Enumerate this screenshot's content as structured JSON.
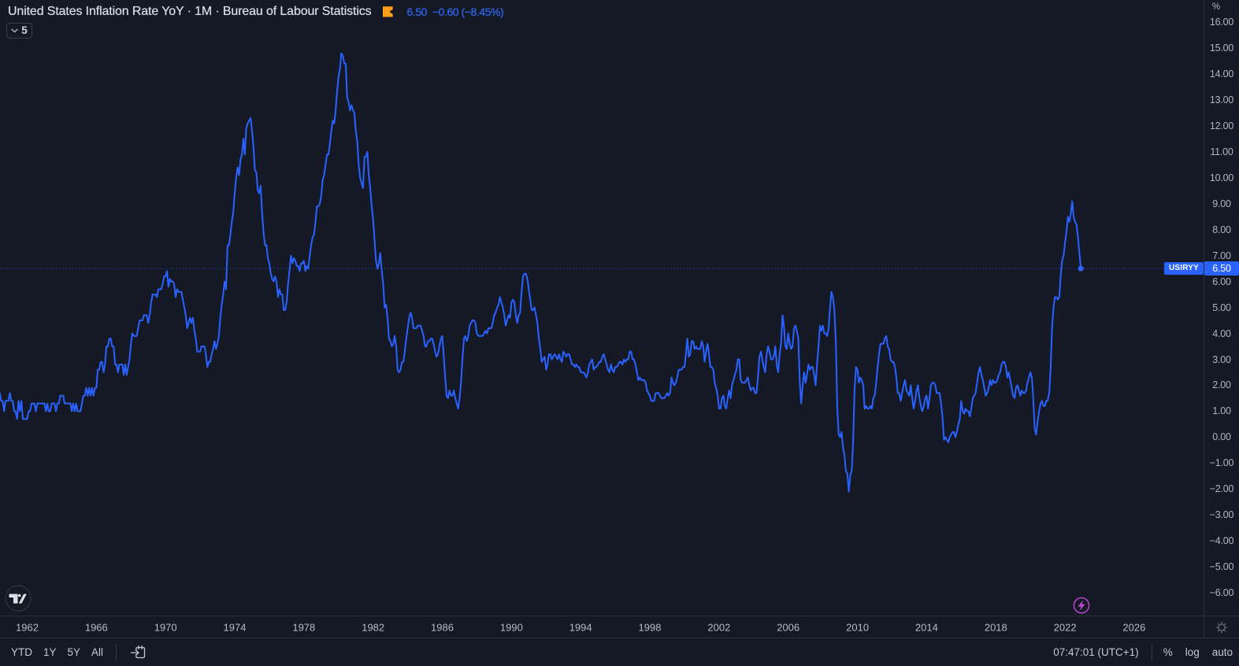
{
  "legend": {
    "title": "United States Inflation Rate YoY · 1M · Bureau of Labour Statistics",
    "flag_color": "#ff9f1c",
    "last_value": "6.50",
    "change": "−0.60",
    "change_pct": "(−8.45%)",
    "interval_value": "5"
  },
  "price_scale": {
    "unit": "%",
    "ticks": [
      {
        "v": 16,
        "label": "16.00"
      },
      {
        "v": 15,
        "label": "15.00"
      },
      {
        "v": 14,
        "label": "14.00"
      },
      {
        "v": 13,
        "label": "13.00"
      },
      {
        "v": 12,
        "label": "12.00"
      },
      {
        "v": 11,
        "label": "11.00"
      },
      {
        "v": 10,
        "label": "10.00"
      },
      {
        "v": 9,
        "label": "9.00"
      },
      {
        "v": 8,
        "label": "8.00"
      },
      {
        "v": 7,
        "label": "7.00"
      },
      {
        "v": 6,
        "label": "6.00"
      },
      {
        "v": 5,
        "label": "5.00"
      },
      {
        "v": 4,
        "label": "4.00"
      },
      {
        "v": 3,
        "label": "3.00"
      },
      {
        "v": 2,
        "label": "2.00"
      },
      {
        "v": 1,
        "label": "1.00"
      },
      {
        "v": 0,
        "label": "0.00"
      },
      {
        "v": -1,
        "label": "−1.00"
      },
      {
        "v": -2,
        "label": "−2.00"
      },
      {
        "v": -3,
        "label": "−3.00"
      },
      {
        "v": -4,
        "label": "−4.00"
      },
      {
        "v": -5,
        "label": "−5.00"
      },
      {
        "v": -6,
        "label": "−6.00"
      }
    ],
    "price_label": {
      "symbol": "USIRYY",
      "value": "6.50",
      "bg": "#2962ff"
    }
  },
  "time_scale": {
    "years": [
      1962,
      1966,
      1970,
      1974,
      1978,
      1982,
      1986,
      1990,
      1994,
      1998,
      2002,
      2006,
      2010,
      2014,
      2018,
      2022,
      2026
    ]
  },
  "toolbar": {
    "ranges": [
      {
        "id": "ytd",
        "label": "YTD"
      },
      {
        "id": "1y",
        "label": "1Y"
      },
      {
        "id": "5y",
        "label": "5Y"
      },
      {
        "id": "all",
        "label": "All"
      }
    ],
    "clock": "07:47:01 (UTC+1)",
    "percent_label": "%",
    "log_label": "log",
    "auto_label": "auto"
  },
  "chart_data": {
    "type": "line",
    "title": "United States Inflation Rate YoY",
    "symbol": "USIRYY",
    "source": "Bureau of Labour Statistics",
    "interval": "1M",
    "unit": "%",
    "line_color": "#2962ff",
    "frequency": "monthly",
    "start_year": 1960,
    "end": "2022-12",
    "last_value": 6.5,
    "prev_value": 7.1,
    "change": -0.6,
    "change_pct": -8.45,
    "x_range": [
      1960.43,
      2030.01
    ],
    "y_range": [
      -6.88,
      16.853
    ],
    "x_ticks": [
      1962,
      1966,
      1970,
      1974,
      1978,
      1982,
      1986,
      1990,
      1994,
      1998,
      2002,
      2006,
      2010,
      2014,
      2018,
      2022,
      2026
    ],
    "y_ticks": [
      16,
      15,
      14,
      13,
      12,
      11,
      10,
      9,
      8,
      7,
      6,
      5,
      4,
      3,
      2,
      1,
      0,
      -1,
      -2,
      -3,
      -4,
      -5,
      -6
    ],
    "values": [
      1.0,
      1.7,
      1.7,
      1.7,
      1.7,
      1.7,
      1.4,
      1.4,
      1.0,
      1.4,
      1.4,
      1.4,
      1.7,
      1.4,
      1.4,
      1.0,
      1.0,
      0.7,
      1.4,
      1.0,
      1.4,
      0.7,
      0.7,
      0.7,
      0.7,
      1.0,
      1.0,
      1.3,
      1.3,
      1.3,
      1.0,
      1.3,
      1.3,
      1.3,
      1.3,
      1.3,
      1.3,
      1.0,
      1.3,
      1.0,
      1.0,
      1.3,
      1.3,
      1.3,
      1.0,
      1.3,
      1.3,
      1.6,
      1.6,
      1.6,
      1.3,
      1.3,
      1.3,
      1.3,
      1.3,
      1.0,
      1.3,
      1.0,
      1.3,
      1.0,
      1.0,
      1.0,
      1.3,
      1.6,
      1.6,
      1.9,
      1.6,
      1.9,
      1.6,
      1.9,
      1.6,
      1.9,
      1.9,
      2.6,
      2.6,
      2.9,
      2.9,
      2.5,
      2.8,
      3.5,
      3.5,
      3.8,
      3.8,
      3.5,
      3.5,
      2.8,
      2.8,
      2.5,
      2.8,
      2.8,
      2.8,
      2.4,
      2.8,
      2.4,
      2.7,
      3.0,
      3.6,
      4.0,
      3.9,
      3.9,
      3.9,
      4.2,
      4.5,
      4.5,
      4.5,
      4.7,
      4.7,
      4.7,
      4.4,
      4.7,
      5.2,
      5.5,
      5.5,
      5.5,
      5.4,
      5.7,
      5.7,
      5.7,
      5.9,
      6.2,
      6.2,
      6.4,
      5.8,
      6.1,
      6.0,
      6.0,
      5.9,
      5.4,
      5.7,
      5.6,
      5.6,
      5.6,
      5.3,
      5.0,
      4.7,
      4.2,
      4.4,
      4.6,
      4.4,
      4.6,
      4.1,
      3.8,
      3.3,
      3.3,
      3.3,
      3.5,
      3.5,
      3.5,
      3.2,
      2.7,
      2.9,
      2.9,
      3.2,
      3.4,
      3.7,
      3.4,
      3.6,
      3.9,
      4.6,
      5.1,
      5.5,
      6.0,
      5.7,
      7.4,
      7.4,
      7.8,
      8.3,
      8.7,
      9.4,
      10.0,
      10.4,
      10.1,
      10.7,
      10.9,
      11.5,
      10.9,
      11.9,
      12.1,
      12.2,
      12.3,
      11.8,
      11.2,
      10.3,
      10.2,
      9.5,
      9.4,
      9.7,
      8.6,
      7.9,
      7.4,
      7.4,
      6.9,
      6.7,
      6.3,
      6.1,
      6.0,
      6.2,
      6.0,
      5.4,
      5.7,
      5.5,
      5.5,
      4.9,
      4.9,
      5.2,
      5.9,
      6.4,
      7.0,
      6.7,
      6.9,
      6.8,
      6.6,
      6.6,
      6.4,
      6.7,
      6.7,
      6.8,
      6.4,
      6.6,
      6.5,
      7.0,
      7.4,
      7.7,
      7.8,
      8.3,
      8.9,
      8.9,
      9.0,
      9.3,
      9.9,
      10.1,
      10.5,
      10.9,
      10.9,
      11.3,
      11.8,
      12.2,
      12.1,
      12.6,
      13.3,
      13.9,
      14.2,
      14.8,
      14.7,
      14.4,
      14.4,
      13.1,
      12.9,
      12.6,
      12.8,
      12.6,
      12.5,
      11.8,
      11.4,
      10.5,
      10.0,
      9.8,
      9.6,
      10.8,
      10.8,
      11.0,
      10.1,
      9.6,
      8.9,
      8.4,
      7.6,
      6.8,
      6.5,
      6.7,
      7.1,
      6.4,
      5.9,
      5.0,
      5.1,
      4.6,
      3.8,
      3.7,
      3.5,
      3.6,
      3.9,
      3.5,
      2.6,
      2.5,
      2.6,
      2.9,
      2.9,
      3.3,
      3.8,
      4.2,
      4.6,
      4.8,
      4.6,
      4.2,
      4.2,
      4.2,
      4.3,
      4.3,
      4.3,
      4.1,
      3.9,
      3.5,
      3.5,
      3.7,
      3.7,
      3.8,
      3.8,
      3.6,
      3.3,
      3.1,
      3.2,
      3.5,
      3.8,
      3.9,
      3.1,
      2.3,
      1.6,
      1.5,
      1.8,
      1.6,
      1.6,
      1.8,
      1.5,
      1.3,
      1.1,
      1.5,
      2.1,
      3.0,
      3.8,
      3.9,
      3.7,
      3.9,
      4.3,
      4.4,
      4.5,
      4.5,
      4.4,
      4.0,
      3.9,
      3.9,
      3.9,
      3.9,
      4.0,
      4.1,
      4.0,
      4.2,
      4.2,
      4.2,
      4.4,
      4.7,
      4.8,
      5.0,
      5.1,
      5.4,
      5.2,
      5.0,
      4.7,
      4.3,
      4.5,
      4.7,
      4.6,
      5.2,
      5.3,
      5.2,
      4.7,
      4.4,
      4.7,
      4.8,
      5.6,
      6.2,
      6.3,
      6.3,
      6.1,
      5.7,
      5.3,
      4.9,
      4.9,
      5.0,
      4.7,
      4.4,
      3.8,
      3.4,
      2.9,
      3.0,
      3.1,
      2.6,
      2.8,
      3.2,
      3.2,
      3.0,
      3.1,
      3.2,
      3.1,
      3.0,
      3.2,
      3.0,
      2.9,
      3.3,
      3.2,
      3.1,
      3.2,
      3.2,
      3.0,
      2.8,
      2.8,
      2.7,
      2.8,
      2.7,
      2.7,
      2.5,
      2.5,
      2.5,
      2.4,
      2.3,
      2.5,
      2.8,
      2.9,
      3.0,
      2.6,
      2.7,
      2.7,
      2.8,
      2.9,
      2.9,
      3.1,
      3.2,
      3.0,
      2.8,
      2.6,
      2.5,
      2.8,
      2.6,
      2.5,
      2.7,
      2.7,
      2.8,
      2.9,
      2.9,
      2.8,
      3.0,
      2.9,
      3.0,
      3.0,
      3.3,
      3.3,
      3.0,
      3.0,
      2.8,
      2.5,
      2.2,
      2.3,
      2.2,
      2.2,
      2.2,
      2.1,
      1.8,
      1.7,
      1.6,
      1.4,
      1.4,
      1.4,
      1.7,
      1.7,
      1.7,
      1.6,
      1.5,
      1.5,
      1.5,
      1.6,
      1.7,
      1.6,
      1.7,
      2.3,
      2.1,
      2.0,
      2.1,
      2.3,
      2.6,
      2.6,
      2.6,
      2.7,
      2.7,
      3.2,
      3.8,
      3.1,
      3.2,
      3.7,
      3.7,
      3.4,
      3.5,
      3.4,
      3.4,
      3.4,
      3.7,
      3.5,
      2.9,
      3.3,
      3.6,
      3.2,
      2.7,
      2.7,
      2.6,
      2.1,
      1.9,
      1.6,
      1.1,
      1.1,
      1.5,
      1.6,
      1.2,
      1.1,
      1.5,
      1.8,
      1.5,
      2.0,
      2.2,
      2.4,
      2.6,
      3.0,
      3.0,
      2.2,
      2.1,
      2.1,
      2.1,
      2.2,
      2.3,
      2.0,
      1.8,
      1.9,
      1.9,
      1.7,
      1.7,
      2.3,
      3.1,
      3.3,
      3.0,
      2.7,
      2.5,
      3.2,
      3.5,
      3.3,
      3.0,
      3.0,
      3.1,
      3.5,
      2.8,
      2.5,
      3.2,
      3.6,
      4.7,
      4.3,
      3.5,
      3.4,
      4.0,
      3.6,
      3.4,
      3.5,
      4.2,
      4.3,
      4.1,
      3.8,
      2.1,
      1.3,
      2.0,
      2.5,
      2.1,
      2.4,
      2.8,
      2.6,
      2.7,
      2.7,
      2.4,
      2.0,
      2.8,
      3.5,
      4.3,
      4.1,
      4.3,
      4.0,
      4.0,
      3.9,
      4.2,
      5.0,
      5.6,
      5.4,
      4.9,
      3.7,
      1.1,
      0.1,
      0.0,
      0.2,
      -0.4,
      -0.7,
      -1.3,
      -1.4,
      -2.1,
      -1.5,
      -1.3,
      -0.2,
      1.8,
      2.7,
      2.6,
      2.1,
      2.3,
      2.2,
      2.0,
      1.1,
      1.2,
      1.1,
      1.1,
      1.2,
      1.1,
      1.5,
      1.6,
      2.1,
      2.7,
      3.2,
      3.6,
      3.6,
      3.6,
      3.8,
      3.9,
      3.5,
      3.4,
      3.0,
      2.9,
      2.9,
      2.7,
      2.3,
      1.7,
      1.7,
      1.4,
      1.7,
      2.0,
      2.2,
      1.8,
      1.7,
      1.6,
      2.0,
      1.5,
      1.1,
      1.4,
      1.8,
      2.0,
      1.5,
      1.2,
      1.0,
      1.2,
      1.5,
      1.6,
      1.1,
      1.5,
      2.0,
      2.1,
      2.1,
      2.0,
      1.7,
      1.7,
      1.7,
      1.3,
      0.8,
      -0.1,
      0.0,
      -0.1,
      -0.2,
      0.0,
      0.1,
      0.2,
      0.2,
      0.0,
      0.2,
      0.5,
      0.7,
      1.4,
      1.0,
      0.9,
      1.1,
      1.0,
      1.0,
      0.8,
      1.1,
      1.5,
      1.6,
      1.7,
      2.1,
      2.5,
      2.7,
      2.4,
      2.2,
      1.9,
      1.6,
      1.7,
      1.9,
      2.2,
      2.0,
      2.2,
      2.1,
      2.1,
      2.2,
      2.4,
      2.5,
      2.8,
      2.9,
      2.9,
      2.7,
      2.3,
      2.5,
      2.2,
      1.9,
      1.6,
      1.5,
      1.9,
      2.0,
      1.8,
      1.6,
      1.8,
      1.7,
      1.7,
      1.8,
      2.1,
      2.3,
      2.5,
      2.3,
      1.5,
      0.3,
      0.1,
      0.6,
      1.0,
      1.3,
      1.4,
      1.2,
      1.2,
      1.4,
      1.4,
      1.7,
      2.6,
      4.2,
      5.0,
      5.4,
      5.4,
      5.3,
      5.4,
      6.2,
      6.8,
      7.0,
      7.5,
      7.9,
      8.5,
      8.3,
      8.6,
      9.1,
      8.5,
      8.3,
      8.2,
      7.7,
      7.1,
      6.5
    ]
  }
}
